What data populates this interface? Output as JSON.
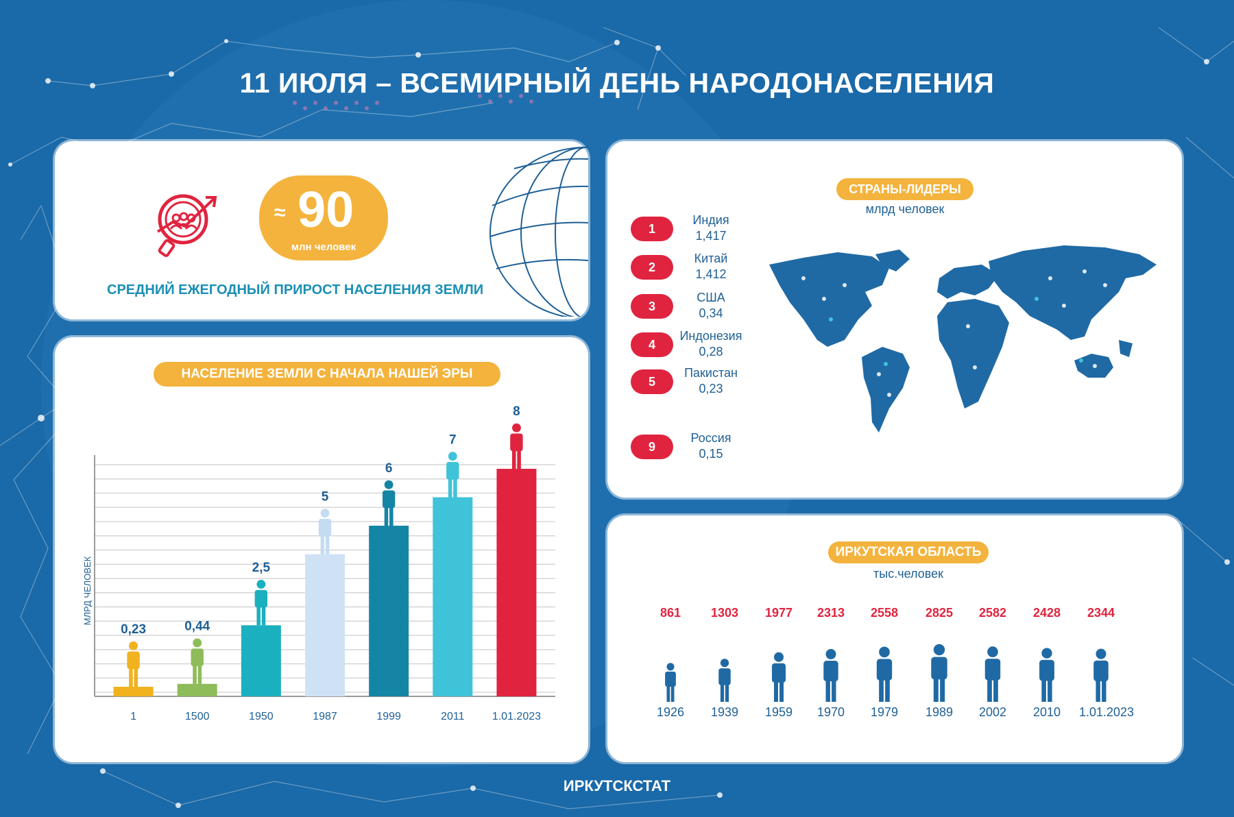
{
  "title": "11 ИЮЛЯ – ВСЕМИРНЫЙ ДЕНЬ НАРОДОНАСЕЛЕНИЯ",
  "growth": {
    "approx_symbol": "≈",
    "value": "90",
    "unit": "млн человек",
    "caption": "СРЕДНИЙ ЕЖЕГОДНЫЙ ПРИРОСТ НАСЕЛЕНИЯ ЗЕМЛИ"
  },
  "leaders": {
    "title": "СТРАНЫ-ЛИДЕРЫ",
    "unit": "млрд  человек",
    "items": [
      {
        "rank": "1",
        "country": "Индия",
        "value": "1,417"
      },
      {
        "rank": "2",
        "country": "Китай",
        "value": "1,412"
      },
      {
        "rank": "3",
        "country": "США",
        "value": "0,34"
      },
      {
        "rank": "4",
        "country": "Индонезия",
        "value": "0,28"
      },
      {
        "rank": "5",
        "country": "Пакистан",
        "value": "0,23"
      },
      {
        "rank": "9",
        "country": "Россия",
        "value": "0,15"
      }
    ]
  },
  "colors": {
    "background": "#1a69a8",
    "accent_orange": "#f3b33d",
    "accent_red": "#e0243f",
    "dark_blue": "#1e5f95",
    "teal": "#1a8fb5"
  },
  "chart_data": [
    {
      "type": "bar",
      "title": "НАСЕЛЕНИЕ ЗЕМЛИ С НАЧАЛА НАШЕЙ ЭРЫ",
      "ylabel": "МЛРД ЧЕЛОВЕК",
      "categories": [
        "1",
        "1500",
        "1950",
        "1987",
        "1999",
        "2011",
        "1.01.2023"
      ],
      "values": [
        0.23,
        0.44,
        2.5,
        5,
        6,
        7,
        8
      ],
      "value_labels": [
        "0,23",
        "0,44",
        "2,5",
        "5",
        "6",
        "7",
        "8"
      ],
      "colors": [
        "#f0b21f",
        "#8fbc5a",
        "#1bb0c0",
        "#cfe2f5",
        "#1585a5",
        "#3fc3d9",
        "#e0243f"
      ],
      "ylim": [
        0,
        8
      ],
      "grid": true
    },
    {
      "type": "pictogram",
      "title": "ИРКУТСКАЯ ОБЛАСТЬ",
      "unit": "тыс.человек",
      "categories": [
        "1926",
        "1939",
        "1959",
        "1970",
        "1979",
        "1989",
        "2002",
        "2010",
        "1.01.2023"
      ],
      "values": [
        861,
        1303,
        1977,
        2313,
        2558,
        2825,
        2582,
        2428,
        2344
      ],
      "value_labels": [
        "861",
        "1303",
        "1977",
        "2313",
        "2558",
        "2825",
        "2582",
        "2428",
        "2344"
      ]
    }
  ],
  "footer": "ИРКУТСКСТАТ"
}
